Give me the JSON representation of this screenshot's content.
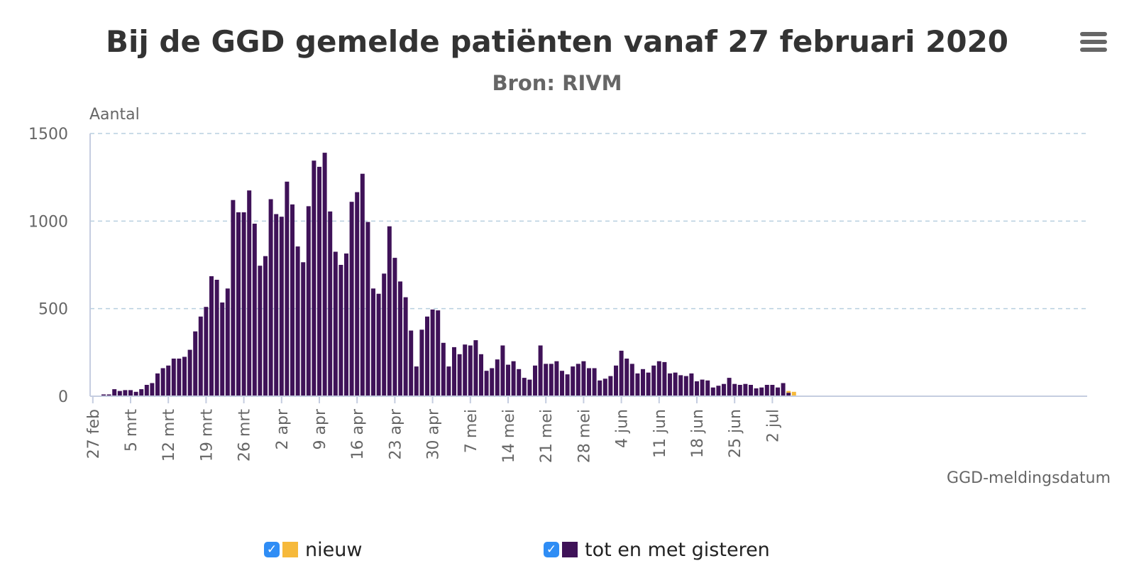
{
  "header": {
    "title": "Bij de GGD gemelde patiënten vanaf 27 februari 2020",
    "subtitle": "Bron: RIVM",
    "menu_icon": "hamburger-menu-icon"
  },
  "legend": {
    "items": [
      {
        "label": "nieuw",
        "color": "#f6b93b",
        "checked": true,
        "check_glyph": "✓"
      },
      {
        "label": "tot en met gisteren",
        "color": "#3f1258",
        "checked": true,
        "check_glyph": "✓"
      }
    ]
  },
  "chart_data": {
    "type": "bar",
    "stacked": true,
    "title": "Bij de GGD gemelde patiënten vanaf 27 februari 2020",
    "subtitle": "Bron: RIVM",
    "ylabel": "Aantal",
    "xlabel": "GGD-meldingsdatum",
    "ylim": [
      0,
      1500
    ],
    "yticks": [
      0,
      500,
      1000,
      1500
    ],
    "grid": true,
    "legend_position": "bottom",
    "x_tick_labels": [
      "27 feb",
      "5 mrt",
      "12 mrt",
      "19 mrt",
      "26 mrt",
      "2 apr",
      "9 apr",
      "16 apr",
      "23 apr",
      "30 apr",
      "7 mei",
      "14 mei",
      "21 mei",
      "28 mei",
      "4 jun",
      "11 jun",
      "18 jun",
      "25 jun",
      "2 jul"
    ],
    "x_tick_every_days": 7,
    "series": [
      {
        "name": "tot en met gisteren",
        "color": "#3f1258",
        "values": [
          0,
          0,
          10,
          10,
          40,
          30,
          35,
          35,
          25,
          40,
          65,
          75,
          130,
          160,
          175,
          215,
          215,
          225,
          265,
          370,
          455,
          510,
          685,
          665,
          535,
          615,
          1120,
          1050,
          1050,
          1175,
          985,
          745,
          800,
          1125,
          1040,
          1025,
          1225,
          1095,
          855,
          765,
          1085,
          1345,
          1310,
          1390,
          1055,
          825,
          750,
          815,
          1110,
          1165,
          1270,
          995,
          615,
          585,
          700,
          970,
          790,
          655,
          565,
          375,
          170,
          380,
          455,
          495,
          490,
          305,
          170,
          280,
          240,
          295,
          290,
          320,
          240,
          145,
          160,
          210,
          290,
          180,
          200,
          155,
          105,
          95,
          175,
          290,
          185,
          185,
          200,
          145,
          125,
          170,
          185,
          200,
          160,
          160,
          90,
          100,
          115,
          175,
          260,
          215,
          185,
          130,
          155,
          135,
          175,
          200,
          195,
          130,
          135,
          120,
          115,
          130,
          85,
          95,
          90,
          50,
          60,
          70,
          105,
          70,
          65,
          70,
          65,
          45,
          50,
          65,
          65,
          50,
          75,
          20,
          0
        ]
      },
      {
        "name": "nieuw",
        "color": "#f6b93b",
        "values": [
          0,
          0,
          0,
          0,
          0,
          0,
          0,
          0,
          0,
          0,
          0,
          0,
          0,
          0,
          0,
          0,
          0,
          0,
          0,
          0,
          0,
          0,
          0,
          0,
          0,
          0,
          0,
          0,
          0,
          0,
          0,
          0,
          0,
          0,
          0,
          0,
          0,
          0,
          0,
          0,
          0,
          0,
          0,
          0,
          0,
          0,
          0,
          0,
          0,
          0,
          0,
          0,
          0,
          0,
          0,
          0,
          0,
          0,
          0,
          0,
          0,
          0,
          0,
          0,
          0,
          0,
          0,
          0,
          0,
          0,
          0,
          0,
          0,
          0,
          0,
          0,
          0,
          0,
          0,
          0,
          0,
          0,
          0,
          0,
          0,
          0,
          0,
          0,
          0,
          0,
          0,
          0,
          0,
          0,
          0,
          0,
          0,
          0,
          0,
          0,
          0,
          0,
          0,
          0,
          0,
          0,
          0,
          0,
          0,
          0,
          0,
          0,
          0,
          0,
          0,
          0,
          0,
          0,
          0,
          0,
          0,
          0,
          0,
          0,
          0,
          0,
          0,
          0,
          0,
          10,
          25
        ]
      }
    ]
  }
}
